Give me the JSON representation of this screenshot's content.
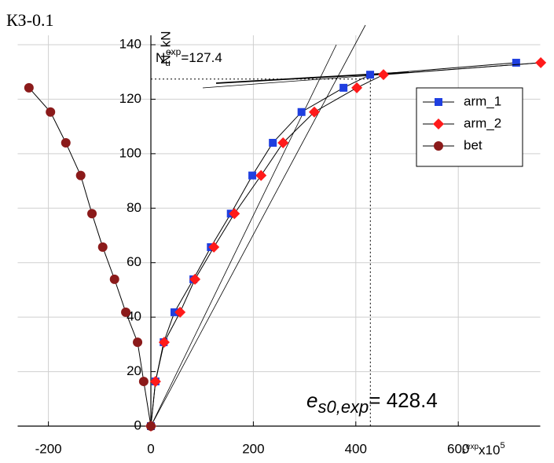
{
  "chart_data": {
    "type": "line",
    "title": "КЗ-0.1",
    "y_label": "N, kN",
    "x_label": {
      "symbol": "ε",
      "sup": "exp",
      "text": "x10",
      "sup2": "5"
    },
    "annotations": [
      {
        "symbol": "N",
        "sub": "u",
        "sup": "exp",
        "sep": "=",
        "value": 127.4
      },
      {
        "symbol": "e",
        "sub": "s0,exp",
        "sep": "= ",
        "value": 428.4
      }
    ],
    "series": [
      {
        "name": "arm_1",
        "color": "#1f3fe0",
        "marker": "square",
        "x": [
          0,
          9,
          25,
          46,
          83,
          117,
          156,
          198,
          238,
          294,
          376,
          428,
          713
        ],
        "values": [
          0,
          16.4,
          30.8,
          41.8,
          53.9,
          65.7,
          78,
          92,
          104,
          115.3,
          124.2,
          129,
          133.4
        ]
      },
      {
        "name": "arm_2",
        "color": "#ff1a1a",
        "marker": "diamond",
        "x": [
          0,
          9,
          26,
          57,
          86,
          123,
          163,
          215,
          258,
          319,
          402,
          454,
          761
        ],
        "values": [
          0,
          16.4,
          30.8,
          41.8,
          53.9,
          65.7,
          78,
          92,
          104,
          115.3,
          124.2,
          129,
          133.4
        ]
      },
      {
        "name": "bet",
        "color": "#8b1a1a",
        "marker": "circle",
        "x": [
          0,
          -14,
          -26,
          -49,
          -71,
          -94,
          -115,
          -137,
          -166,
          -196,
          -238
        ],
        "values": [
          0,
          16.4,
          30.8,
          41.8,
          53.9,
          65.7,
          78,
          92,
          104,
          115.3,
          124.2
        ]
      }
    ],
    "xlim": [
      -260,
      760
    ],
    "ylim": [
      0,
      140
    ],
    "xticks": [
      -200,
      0,
      200,
      400,
      600
    ],
    "yticks": [
      0,
      20,
      40,
      60,
      80,
      100,
      120,
      140
    ],
    "grid": true,
    "legend": "upper right"
  }
}
